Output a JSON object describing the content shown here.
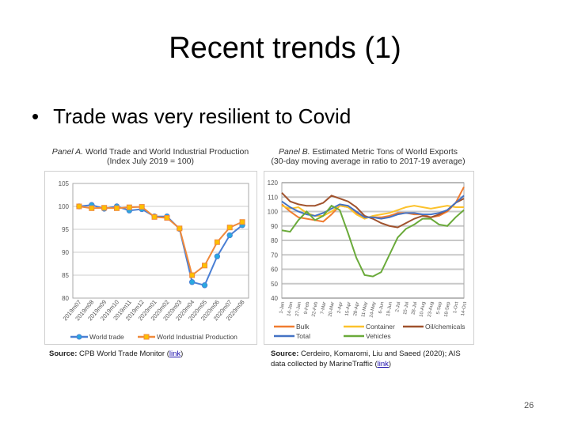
{
  "slide": {
    "title": "Recent trends (1)",
    "bullet": "Trade was very resilient to Covid",
    "page_number": "26"
  },
  "chart_data": [
    {
      "type": "line",
      "title_prefix": "Panel A.",
      "title": "World Trade and World Industrial Production",
      "subtitle": "(Index July 2019 = 100)",
      "categories": [
        "2019m07",
        "2019m08",
        "2019m09",
        "2019m10",
        "2019m11",
        "2019m12",
        "2020m01",
        "2020m02",
        "2020m03",
        "2020m04",
        "2020m05",
        "2020m06",
        "2020m07",
        "2020m08"
      ],
      "ylim": [
        80,
        105
      ],
      "yticks": [
        80,
        85,
        90,
        95,
        100,
        105
      ],
      "grid": true,
      "legend": "bottom",
      "series": [
        {
          "name": "World trade",
          "color": "#4a7fd4",
          "marker": "circle",
          "values": [
            100,
            100.3,
            99.5,
            100,
            99.1,
            99.4,
            97.8,
            97.8,
            95.1,
            83.5,
            82.8,
            89.1,
            93.7,
            95.9
          ]
        },
        {
          "name": "World Industrial Production",
          "color": "#f08a3c",
          "marker": "square",
          "values": [
            100,
            99.6,
            99.7,
            99.6,
            99.8,
            99.9,
            97.7,
            97.5,
            95.2,
            85.0,
            87.1,
            92.2,
            95.4,
            96.6
          ]
        }
      ],
      "source_label": "Source:",
      "source": "CPB World Trade Monitor (",
      "link": "link",
      "source_end": ")"
    },
    {
      "type": "line",
      "title_prefix": "Panel B.",
      "title": "Estimated Metric Tons of World Exports",
      "subtitle": "(30-day moving average in ratio to 2017-19 average)",
      "categories": [
        "1-Jan",
        "14-Jan",
        "27-Jan",
        "9-Feb",
        "22-Feb",
        "7-Mar",
        "20-Mar",
        "2-Apr",
        "15-Apr",
        "28-Apr",
        "11-May",
        "24-May",
        "6-Jun",
        "19-Jun",
        "2-Jul",
        "15-Jul",
        "28-Jul",
        "10-Aug",
        "23-Aug",
        "5-Sep",
        "18-Sep",
        "1-Oct",
        "14-Oct"
      ],
      "ylim": [
        40,
        120
      ],
      "yticks": [
        40,
        50,
        60,
        70,
        80,
        90,
        100,
        110,
        120
      ],
      "grid": true,
      "legend": "bottom",
      "series": [
        {
          "name": "Bulk",
          "color": "#f07c30",
          "values": [
            105,
            100,
            96,
            95,
            94,
            93,
            98,
            104,
            103,
            99,
            96,
            96,
            96,
            97,
            99,
            99,
            98,
            98,
            96,
            97,
            100,
            106,
            117
          ]
        },
        {
          "name": "Container",
          "color": "#fcc22c",
          "values": [
            104,
            102,
            103,
            99,
            97,
            97,
            100,
            104,
            103,
            98,
            95,
            97,
            98,
            99,
            101,
            103,
            104,
            103,
            102,
            103,
            104,
            103,
            103
          ]
        },
        {
          "name": "Oil/chemicals",
          "color": "#a0522d",
          "values": [
            113,
            107,
            105,
            104,
            104,
            106,
            111,
            109,
            107,
            103,
            97,
            95,
            92,
            90,
            89,
            92,
            95,
            97,
            96,
            98,
            101,
            106,
            109
          ]
        },
        {
          "name": "Total",
          "color": "#4472c4",
          "values": [
            107,
            103,
            100,
            98,
            97,
            99,
            102,
            105,
            104,
            100,
            96,
            96,
            95,
            96,
            98,
            99,
            99,
            98,
            98,
            99,
            101,
            106,
            111
          ]
        },
        {
          "name": "Vehicles",
          "color": "#6aaa3a",
          "values": [
            87,
            86,
            94,
            100,
            94,
            97,
            104,
            101,
            85,
            68,
            56,
            55,
            58,
            70,
            82,
            88,
            91,
            95,
            95,
            91,
            90,
            96,
            101
          ]
        }
      ],
      "source_label": "Source:",
      "source": "Cerdeiro, Komaromi, Liu and Saeed (2020); AIS data collected by MarineTraffic (",
      "link": "link",
      "source_end": ")"
    }
  ]
}
